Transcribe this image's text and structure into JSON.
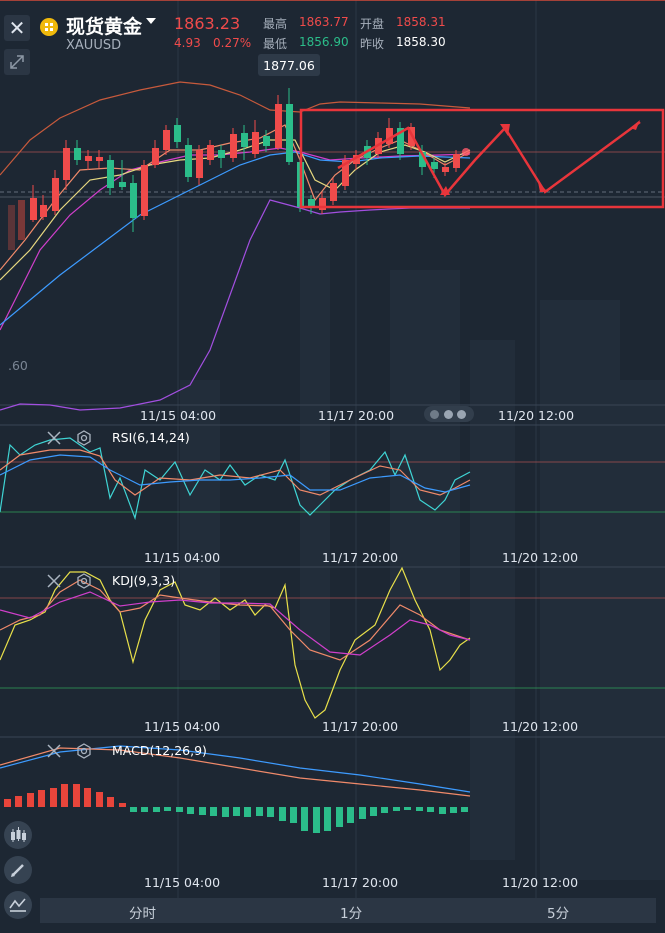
{
  "header": {
    "title": "现货黄金",
    "symbol": "XAUUSD",
    "price": "1863.23",
    "change": "4.93",
    "change_percent": "0.27%",
    "stats": {
      "high_label": "最高",
      "high_value": "1863.77",
      "open_label": "开盘",
      "open_value": "1858.31",
      "low_label": "最低",
      "low_value": "1856.90",
      "prev_close_label": "昨收",
      "prev_close_value": "1858.30"
    }
  },
  "main_chart": {
    "crosshair_price": "1877.06",
    "left_price_label": ".60",
    "time_labels": [
      "11/15 04:00",
      "11/17 20:00",
      "11/20 12:00"
    ]
  },
  "rsi": {
    "label": "RSI(6,14,24)",
    "time_labels": [
      "11/15 04:00",
      "11/17 20:00",
      "11/20 12:00"
    ]
  },
  "kdj": {
    "label": "KDJ(9,3,3)",
    "time_labels": [
      "11/15 04:00",
      "11/17 20:00",
      "11/20 12:00"
    ]
  },
  "macd": {
    "label": "MACD(12,26,9)",
    "time_labels": [
      "11/15 04:00",
      "11/17 20:00",
      "11/20 12:00"
    ]
  },
  "tabs": [
    "分时",
    "1分",
    "5分"
  ],
  "colors": {
    "up": "#f04b4b",
    "down": "#2bbd8a",
    "background": "#1d2733",
    "ma_short": "#f08a6a",
    "ma_mid": "#e8e08a",
    "ma_long": "#4aa3ff",
    "purple": "#c33ff0"
  },
  "icons": {
    "close": "close-icon",
    "expand": "expand-icon",
    "coin": "gold-coin-icon",
    "dropdown": "caret-down-icon",
    "candlestick": "candlestick-icon",
    "pencil": "pencil-icon",
    "indicator": "indicator-icon",
    "gear": "gear-icon"
  }
}
